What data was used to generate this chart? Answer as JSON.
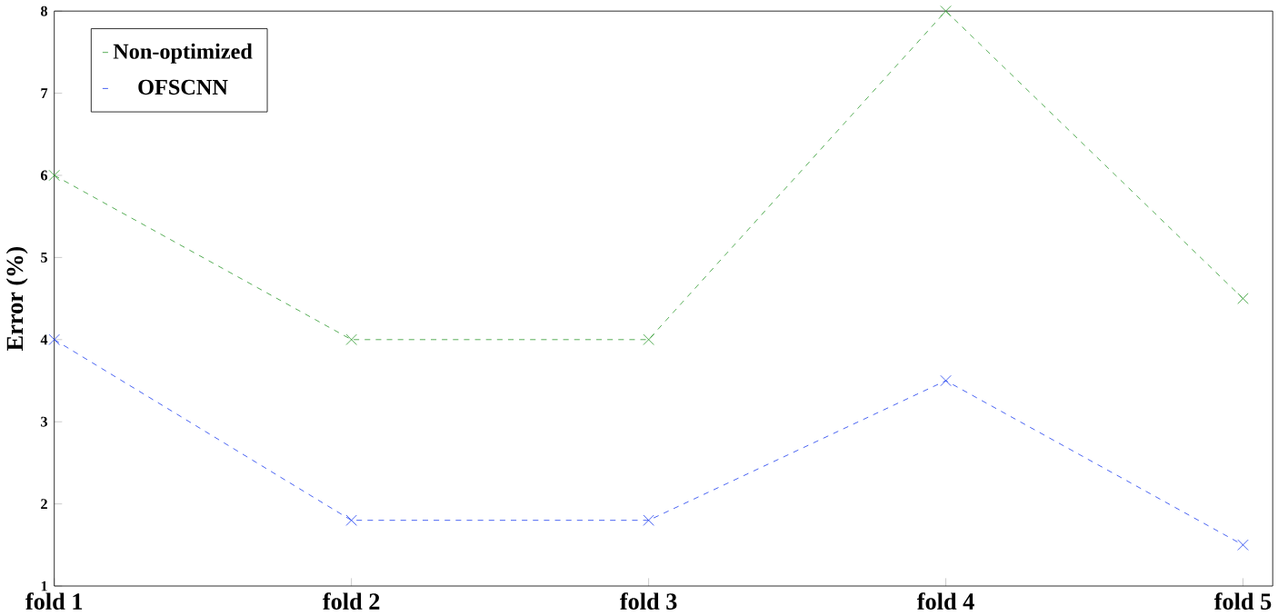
{
  "chart_data": {
    "type": "line",
    "ylabel": "Error (%)",
    "categories": [
      "fold 1",
      "fold 2",
      "fold 3",
      "fold 4",
      "fold 5"
    ],
    "series": [
      {
        "name": "Non-optimized",
        "color": "#2e9a2e",
        "values": [
          6,
          4,
          4,
          8,
          4.5
        ]
      },
      {
        "name": "OFSCNN",
        "color": "#1f3fef",
        "values": [
          4,
          1.8,
          1.8,
          3.5,
          1.5
        ]
      }
    ],
    "ylim": [
      1,
      8
    ],
    "yticks": [
      1,
      2,
      3,
      4,
      5,
      6,
      7,
      8
    ],
    "legend": "top left",
    "marker": "cross",
    "line_style": "dashed",
    "grid": false
  }
}
